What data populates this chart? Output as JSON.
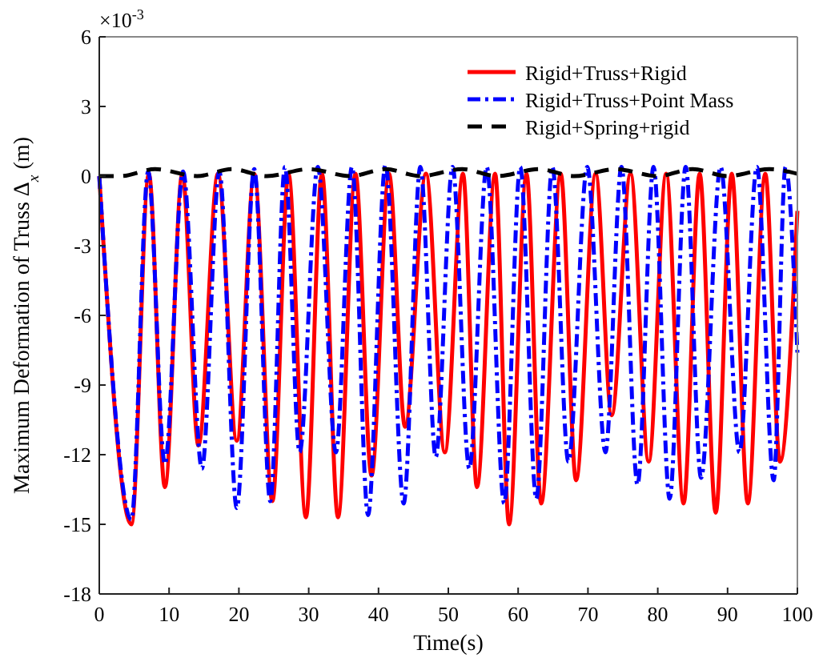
{
  "chart_data": {
    "type": "line",
    "xlabel": "Time(s)",
    "ylabel": "Maximum Deformation of Truss Δ$_{x}$ (m)",
    "annotations": [
      "×10$^{-3}$"
    ],
    "xlim": [
      0,
      100
    ],
    "xticks": [
      0,
      10,
      20,
      30,
      40,
      50,
      60,
      70,
      80,
      90,
      100
    ],
    "ylim": [
      -18,
      6
    ],
    "yticks": [
      -18,
      -15,
      -12,
      -9,
      -6,
      -3,
      0,
      3,
      6
    ],
    "grid": false,
    "legend": "top right",
    "marker": "none",
    "series": [
      {
        "name": "Rigid+Truss+Rigid",
        "color": "#ff0000",
        "line_style": "solid",
        "x": [
          0,
          4.6,
          7.1,
          9.4,
          11.9,
          14.2,
          17.0,
          19.7,
          22.2,
          24.8,
          27.1,
          29.6,
          31.9,
          34.2,
          36.7,
          39.0,
          41.5,
          43.8,
          46.8,
          49.5,
          52.1,
          54.1,
          56.7,
          58.7,
          61.2,
          63.3,
          66.1,
          68.3,
          71.1,
          73.4,
          76.1,
          78.7,
          81.2,
          83.7,
          86.0,
          88.3,
          90.6,
          92.9,
          95.4,
          97.5,
          100
        ],
        "values": [
          0,
          -15.0,
          0.1,
          -13.4,
          0.1,
          -11.6,
          0.1,
          -11.4,
          0.1,
          -14.0,
          0.1,
          -14.7,
          0.1,
          -14.7,
          0.1,
          -12.9,
          0.1,
          -10.8,
          0.1,
          -11.9,
          0.1,
          -13.4,
          0.1,
          -15.0,
          0.1,
          -14.1,
          0.1,
          -13.1,
          0.1,
          -10.3,
          0.1,
          -12.3,
          0.1,
          -14.1,
          0.1,
          -14.5,
          0.1,
          -14.1,
          0.1,
          -12.3,
          -1.5
        ]
      },
      {
        "name": "Rigid+Truss+Point Mass",
        "color": "#0000ff",
        "line_style": "dashdot",
        "x": [
          0,
          4.6,
          7.0,
          9.4,
          12.0,
          14.7,
          17.2,
          19.7,
          22.2,
          24.5,
          26.6,
          28.7,
          31.3,
          33.9,
          36.2,
          38.5,
          41.0,
          43.6,
          46.0,
          48.2,
          50.6,
          53.0,
          55.5,
          58.0,
          60.3,
          62.6,
          64.9,
          67.2,
          69.9,
          72.5,
          74.8,
          77.1,
          79.4,
          81.7,
          84.0,
          86.2,
          89.0,
          91.7,
          94.2,
          96.6,
          98.3,
          100
        ],
        "values": [
          0,
          -14.8,
          0.2,
          -12.4,
          0.2,
          -12.6,
          0.2,
          -14.3,
          0.3,
          -14.0,
          0.4,
          -11.9,
          0.4,
          -11.9,
          0.4,
          -14.6,
          0.5,
          -14.1,
          0.4,
          -12.1,
          0.4,
          -12.6,
          0.4,
          -14.1,
          0.4,
          -13.9,
          0.4,
          -12.3,
          0.4,
          -11.9,
          0.4,
          -13.3,
          0.4,
          -13.9,
          0.4,
          -13.0,
          0.4,
          -11.9,
          0.4,
          -13.1,
          0.4,
          -7.6
        ]
      },
      {
        "name": "Rigid+Spring+rigid",
        "color": "#000000",
        "line_style": "dashed",
        "x": [
          0,
          3,
          8,
          14,
          19,
          24,
          30,
          36,
          41,
          46,
          52,
          57,
          63,
          68,
          74,
          80,
          85,
          90,
          96,
          100
        ],
        "values": [
          0,
          0.0,
          0.3,
          0.0,
          0.3,
          0.0,
          0.3,
          0.0,
          0.3,
          0.0,
          0.3,
          0.0,
          0.3,
          0.0,
          0.3,
          0.0,
          0.3,
          0.0,
          0.3,
          0.1
        ]
      }
    ]
  }
}
